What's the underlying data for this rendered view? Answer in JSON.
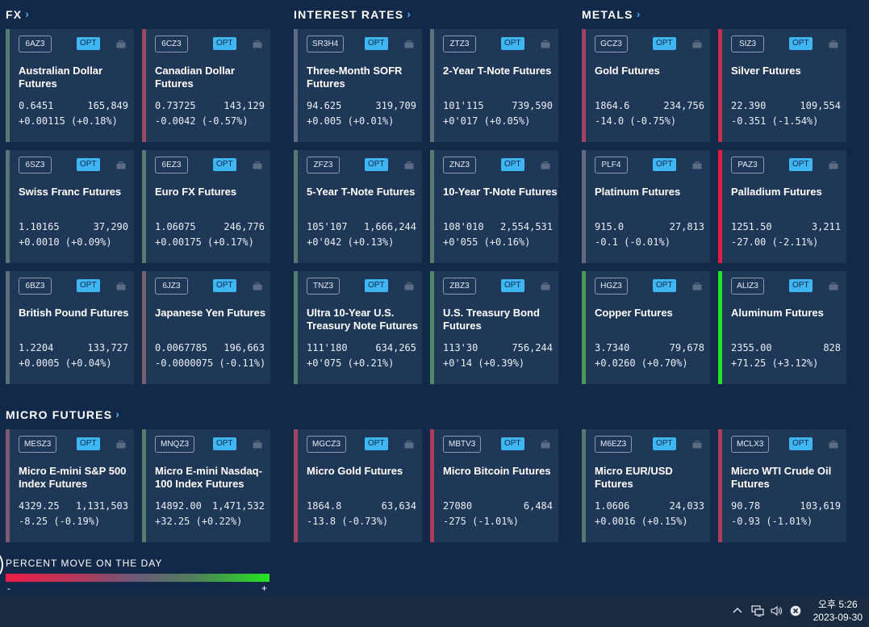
{
  "sections": {
    "fx": "FX",
    "rates": "INTEREST RATES",
    "metals": "METALS",
    "micro": "MICRO FUTURES"
  },
  "badge_label": "OPT",
  "icons": {
    "section_chevron": "chevron-right-icon",
    "card_portfolio": "briefcase-icon"
  },
  "colors": {
    "background": "#13294a",
    "card": "#203858",
    "opt_badge": "#3fb6f2",
    "accent": "#3fb0f0",
    "legend_negative": "#ef1b45",
    "legend_neutral": "#6a5a78",
    "legend_positive": "#24e41f"
  },
  "cards": [
    {
      "symbol": "6AZ3",
      "name": "Australian Dollar Futures",
      "price": "0.6451",
      "volume": "165,849",
      "change": "+0.00115 (+0.18%)",
      "pct": 0.18
    },
    {
      "symbol": "6CZ3",
      "name": "Canadian Dollar Futures",
      "price": "0.73725",
      "volume": "143,129",
      "change": "-0.0042 (-0.57%)",
      "pct": -0.57
    },
    {
      "symbol": "SR3H4",
      "name": "Three-Month SOFR Futures",
      "price": "94.625",
      "volume": "319,709",
      "change": "+0.005 (+0.01%)",
      "pct": 0.01
    },
    {
      "symbol": "ZTZ3",
      "name": "2-Year T-Note Futures",
      "price": "101'115",
      "volume": "739,590",
      "change": "+0'017 (+0.05%)",
      "pct": 0.05
    },
    {
      "symbol": "GCZ3",
      "name": "Gold Futures",
      "price": "1864.6",
      "volume": "234,756",
      "change": "-14.0 (-0.75%)",
      "pct": -0.75
    },
    {
      "symbol": "SIZ3",
      "name": "Silver Futures",
      "price": "22.390",
      "volume": "109,554",
      "change": "-0.351 (-1.54%)",
      "pct": -1.54
    },
    {
      "symbol": "6SZ3",
      "name": "Swiss Franc Futures",
      "price": "1.10165",
      "volume": "37,290",
      "change": "+0.0010 (+0.09%)",
      "pct": 0.09
    },
    {
      "symbol": "6EZ3",
      "name": "Euro FX Futures",
      "price": "1.06075",
      "volume": "246,776",
      "change": "+0.00175 (+0.17%)",
      "pct": 0.17
    },
    {
      "symbol": "ZFZ3",
      "name": "5-Year T-Note Futures",
      "price": "105'107",
      "volume": "1,666,244",
      "change": "+0'042 (+0.13%)",
      "pct": 0.13
    },
    {
      "symbol": "ZNZ3",
      "name": "10-Year T-Note Futures",
      "price": "108'010",
      "volume": "2,554,531",
      "change": "+0'055 (+0.16%)",
      "pct": 0.16
    },
    {
      "symbol": "PLF4",
      "name": "Platinum Futures",
      "price": "915.0",
      "volume": "27,813",
      "change": "-0.1 (-0.01%)",
      "pct": -0.01
    },
    {
      "symbol": "PAZ3",
      "name": "Palladium Futures",
      "price": "1251.50",
      "volume": "3,211",
      "change": "-27.00 (-2.11%)",
      "pct": -2.11
    },
    {
      "symbol": "6BZ3",
      "name": "British Pound Futures",
      "price": "1.2204",
      "volume": "133,727",
      "change": "+0.0005 (+0.04%)",
      "pct": 0.04
    },
    {
      "symbol": "6JZ3",
      "name": "Japanese Yen Futures",
      "price": "0.0067785",
      "volume": "196,663",
      "change": "-0.0000075 (-0.11%)",
      "pct": -0.11
    },
    {
      "symbol": "TNZ3",
      "name": "Ultra 10-Year U.S. Treasury Note Futures",
      "price": "111'180",
      "volume": "634,265",
      "change": "+0'075 (+0.21%)",
      "pct": 0.21
    },
    {
      "symbol": "ZBZ3",
      "name": "U.S. Treasury Bond Futures",
      "price": "113'30",
      "volume": "756,244",
      "change": "+0'14 (+0.39%)",
      "pct": 0.39
    },
    {
      "symbol": "HGZ3",
      "name": "Copper Futures",
      "price": "3.7340",
      "volume": "79,678",
      "change": "+0.0260 (+0.70%)",
      "pct": 0.7
    },
    {
      "symbol": "ALIZ3",
      "name": "Aluminum Futures",
      "price": "2355.00",
      "volume": "828",
      "change": "+71.25 (+3.12%)",
      "pct": 3.12
    },
    {
      "symbol": "MESZ3",
      "name": "Micro E-mini S&P 500 Index Futures",
      "price": "4329.25",
      "volume": "1,131,503",
      "change": "-8.25 (-0.19%)",
      "pct": -0.19
    },
    {
      "symbol": "MNQZ3",
      "name": "Micro E-mini Nasdaq-100 Index Futures",
      "price": "14892.00",
      "volume": "1,471,532",
      "change": "+32.25 (+0.22%)",
      "pct": 0.22
    },
    {
      "symbol": "MGCZ3",
      "name": "Micro Gold Futures",
      "price": "1864.8",
      "volume": "63,634",
      "change": "-13.8 (-0.73%)",
      "pct": -0.73
    },
    {
      "symbol": "MBTV3",
      "name": "Micro Bitcoin Futures",
      "price": "27080",
      "volume": "6,484",
      "change": "-275 (-1.01%)",
      "pct": -1.01
    },
    {
      "symbol": "M6EZ3",
      "name": "Micro EUR/USD Futures",
      "price": "1.0606",
      "volume": "24,033",
      "change": "+0.0016 (+0.15%)",
      "pct": 0.15
    },
    {
      "symbol": "MCLX3",
      "name": "Micro WTI Crude Oil Futures",
      "price": "90.78",
      "volume": "103,619",
      "change": "-0.93 (-1.01%)",
      "pct": -1.01
    }
  ],
  "legend": {
    "title": "PERCENT MOVE ON THE DAY",
    "minus": "-",
    "plus": "+"
  },
  "taskbar": {
    "time": "오후 5:26",
    "date": "2023-09-30",
    "icons": [
      "chevron-up-icon",
      "network-icon",
      "volume-icon",
      "close-circle-icon"
    ]
  }
}
